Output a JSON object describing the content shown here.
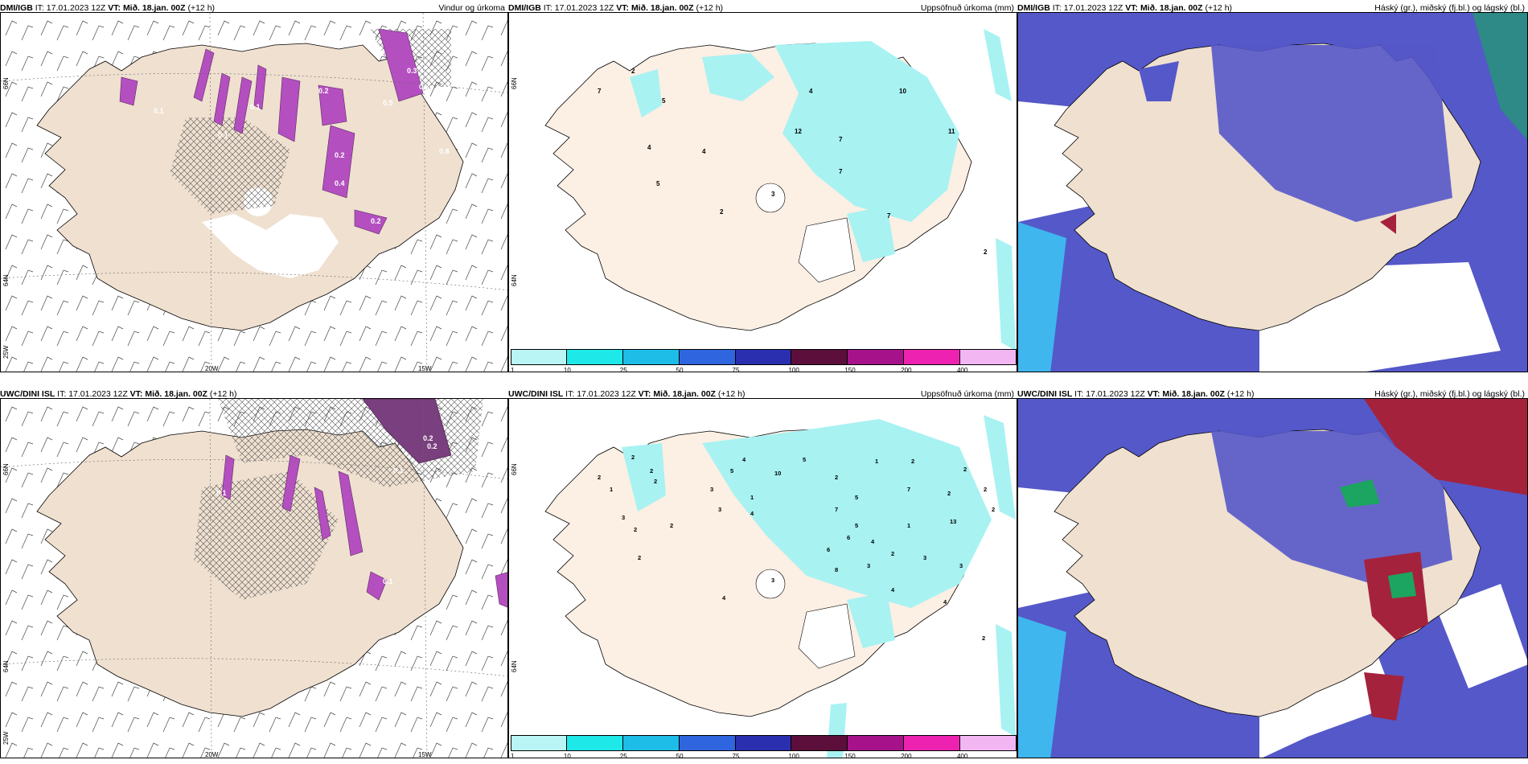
{
  "colors": {
    "land": "#efe0d0",
    "land_light": "#fcefe4",
    "precip_light": "#a8f2f2",
    "precip_mid": "#3ce3e3",
    "high_cloud": "#5558c8",
    "low_cloud": "#3fb6ee",
    "mid_cloud": "#2d8a86",
    "mid_cloud2": "#1ca560",
    "heavy_red": "#a5223c",
    "magenta": "#b44fc0",
    "purple": "#7a3f7e"
  },
  "rows": [
    {
      "model": "DMI/IGB",
      "it_label": "IT:",
      "it_value": "17.01.2023 12Z",
      "vt_label": "VT:",
      "vt_value": "Mið. 18.jan. 00Z",
      "lead": "(+12 h)",
      "panels": [
        {
          "title": "Vindur og úrkoma",
          "values": [
            "0.1",
            "0.1",
            "0.1",
            "0.2",
            "0.5",
            "0.3",
            "0.2",
            "0.8",
            "0.4",
            "0.2",
            "0.3"
          ],
          "lon_labels": [
            "20W",
            "15W"
          ],
          "lat_labels": [
            "66N",
            "64N",
            "25W"
          ]
        },
        {
          "title": "Uppsöfnuð úrkoma (mm)",
          "values": [
            "2",
            "7",
            "5",
            "4",
            "5",
            "4",
            "12",
            "7",
            "10",
            "11",
            "7",
            "7",
            "3",
            "2",
            "4",
            "2"
          ],
          "lat_labels": [
            "66N",
            "64N"
          ]
        },
        {
          "title": "Háský (gr.), miðský (fj.bl.) og lágský (bl.)"
        }
      ]
    },
    {
      "model": "UWC/DINI ISL",
      "it_label": "IT:",
      "it_value": "17.01.2023 12Z",
      "vt_label": "VT:",
      "vt_value": "Mið. 18.jan. 00Z",
      "lead": "(+12 h)",
      "panels": [
        {
          "title": "",
          "values": [
            "0.2",
            "0.2",
            "0.1",
            "0.1",
            "0.2",
            "0.1"
          ],
          "lon_labels": [
            "20W",
            "15W"
          ],
          "lat_labels": [
            "66N",
            "64N",
            "25W"
          ]
        },
        {
          "title": "Uppsöfnuð úrkoma (mm)",
          "values": [
            "2",
            "2",
            "1",
            "2",
            "2",
            "3",
            "2",
            "2",
            "3",
            "1",
            "5",
            "10",
            "4",
            "5",
            "2",
            "3",
            "4",
            "2",
            "1",
            "5",
            "6",
            "7",
            "4",
            "7",
            "2",
            "2",
            "1",
            "2",
            "3",
            "5",
            "3",
            "4",
            "8",
            "6",
            "3",
            "4",
            "2",
            "2",
            "2",
            "2",
            "2",
            "4",
            "13",
            "3"
          ],
          "lat_labels": [
            "66N",
            "64N"
          ]
        },
        {
          "title": "Háský (gr.), miðský (fj.bl.) og lágský (bl.)"
        }
      ]
    }
  ],
  "colorbar": {
    "colors": [
      "#b9f5f5",
      "#1ee8e8",
      "#1ebde8",
      "#2f66e0",
      "#2a2fb0",
      "#5b0f3a",
      "#a5128a",
      "#ee22b0",
      "#f2b6f2"
    ],
    "labels": [
      "1",
      "10",
      "25",
      "50",
      "75",
      "100",
      "150",
      "200",
      "400"
    ]
  }
}
